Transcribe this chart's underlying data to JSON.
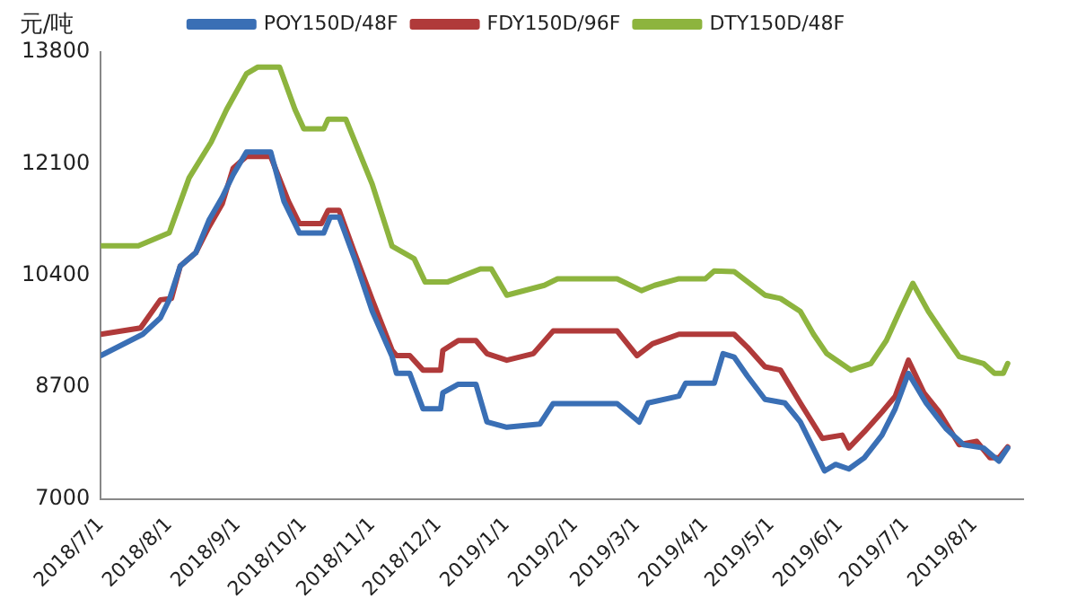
{
  "chart_data": {
    "type": "line",
    "ylabel": "元/吨",
    "xlim": [
      "2018-07-01",
      "2019-08-23"
    ],
    "xticks": [
      {
        "value": "2018-07-01",
        "label": "2018/7/1"
      },
      {
        "value": "2018-08-01",
        "label": "2018/8/1"
      },
      {
        "value": "2018-09-01",
        "label": "2018/9/1"
      },
      {
        "value": "2018-10-01",
        "label": "2018/10/1"
      },
      {
        "value": "2018-11-01",
        "label": "2018/11/1"
      },
      {
        "value": "2018-12-01",
        "label": "2018/12/1"
      },
      {
        "value": "2019-01-01",
        "label": "2019/1/1"
      },
      {
        "value": "2019-02-01",
        "label": "2019/2/1"
      },
      {
        "value": "2019-03-01",
        "label": "2019/3/1"
      },
      {
        "value": "2019-04-01",
        "label": "2019/4/1"
      },
      {
        "value": "2019-05-01",
        "label": "2019/5/1"
      },
      {
        "value": "2019-06-01",
        "label": "2019/6/1"
      },
      {
        "value": "2019-07-01",
        "label": "2019/7/1"
      },
      {
        "value": "2019-08-01",
        "label": "2019/8/1"
      }
    ],
    "ylim": [
      7000,
      13800
    ],
    "yticks": [
      7000,
      8700,
      10400,
      12100,
      13800
    ],
    "grid": false,
    "legend": "top",
    "marker": "none",
    "line_style": "solid",
    "series": [
      {
        "name": "POY150D/48F",
        "color": "#3a6fb5",
        "x": [
          "2018-07-01",
          "2018-07-20",
          "2018-07-28",
          "2018-08-01",
          "2018-08-06",
          "2018-08-13",
          "2018-08-19",
          "2018-08-25",
          "2018-08-30",
          "2018-09-05",
          "2018-09-16",
          "2018-09-22",
          "2018-09-29",
          "2018-10-10",
          "2018-10-13",
          "2018-10-17",
          "2018-10-24",
          "2018-11-01",
          "2018-11-10",
          "2018-11-12",
          "2018-11-18",
          "2018-11-24",
          "2018-12-02",
          "2018-12-03",
          "2018-12-10",
          "2018-12-18",
          "2018-12-23",
          "2019-01-01",
          "2019-01-16",
          "2019-01-22",
          "2019-02-20",
          "2019-03-02",
          "2019-03-06",
          "2019-03-20",
          "2019-03-23",
          "2019-04-05",
          "2019-04-09",
          "2019-04-14",
          "2019-04-20",
          "2019-04-28",
          "2019-05-07",
          "2019-05-14",
          "2019-05-25",
          "2019-05-30",
          "2019-06-05",
          "2019-06-12",
          "2019-06-20",
          "2019-06-26",
          "2019-07-02",
          "2019-07-10",
          "2019-07-19",
          "2019-07-27",
          "2019-08-05",
          "2019-08-12",
          "2019-08-16"
        ],
        "values": [
          9180,
          9505,
          9755,
          10030,
          10545,
          10745,
          11240,
          11590,
          11935,
          12280,
          12280,
          11530,
          11045,
          11045,
          11290,
          11290,
          10655,
          9855,
          9165,
          8910,
          8910,
          8370,
          8370,
          8615,
          8745,
          8745,
          8170,
          8090,
          8140,
          8450,
          8450,
          8170,
          8460,
          8565,
          8760,
          8760,
          9210,
          9160,
          8870,
          8515,
          8460,
          8170,
          7425,
          7525,
          7455,
          7625,
          7970,
          8370,
          8910,
          8460,
          8070,
          7825,
          7775,
          7575,
          7775
        ]
      },
      {
        "name": "FDY150D/96F",
        "color": "#b03a3a",
        "x": [
          "2018-07-01",
          "2018-07-19",
          "2018-07-28",
          "2018-08-02",
          "2018-08-06",
          "2018-08-13",
          "2018-08-19",
          "2018-08-25",
          "2018-08-30",
          "2018-09-05",
          "2018-09-16",
          "2018-09-24",
          "2018-09-29",
          "2018-10-09",
          "2018-10-12",
          "2018-10-17",
          "2018-10-24",
          "2018-11-01",
          "2018-11-10",
          "2018-11-12",
          "2018-11-18",
          "2018-11-24",
          "2018-12-02",
          "2018-12-03",
          "2018-12-10",
          "2018-12-18",
          "2018-12-23",
          "2019-01-01",
          "2019-01-13",
          "2019-01-22",
          "2019-02-20",
          "2019-03-01",
          "2019-03-08",
          "2019-03-20",
          "2019-04-14",
          "2019-04-20",
          "2019-04-28",
          "2019-05-05",
          "2019-05-14",
          "2019-05-24",
          "2019-06-02",
          "2019-06-05",
          "2019-06-12",
          "2019-06-20",
          "2019-06-26",
          "2019-07-02",
          "2019-07-09",
          "2019-07-16",
          "2019-07-25",
          "2019-08-02",
          "2019-08-08",
          "2019-08-12",
          "2019-08-16"
        ],
        "values": [
          9505,
          9600,
          10030,
          10050,
          10545,
          10745,
          11140,
          11490,
          12035,
          12210,
          12210,
          11530,
          11190,
          11190,
          11390,
          11390,
          10745,
          10030,
          9260,
          9180,
          9180,
          8960,
          8960,
          9260,
          9410,
          9410,
          9210,
          9110,
          9210,
          9555,
          9555,
          9180,
          9360,
          9505,
          9505,
          9310,
          9010,
          8960,
          8460,
          7920,
          7970,
          7775,
          8020,
          8320,
          8560,
          9110,
          8615,
          8320,
          7825,
          7875,
          7625,
          7625,
          7790
        ]
      },
      {
        "name": "DTY150D/48F",
        "color": "#8db43e",
        "x": [
          "2018-07-01",
          "2018-07-18",
          "2018-08-01",
          "2018-08-10",
          "2018-08-20",
          "2018-08-27",
          "2018-09-05",
          "2018-09-10",
          "2018-09-20",
          "2018-09-27",
          "2018-10-01",
          "2018-10-10",
          "2018-10-12",
          "2018-10-20",
          "2018-11-01",
          "2018-11-10",
          "2018-11-20",
          "2018-11-25",
          "2018-12-05",
          "2018-12-20",
          "2018-12-25",
          "2019-01-01",
          "2019-01-18",
          "2019-01-24",
          "2019-02-20",
          "2019-03-03",
          "2019-03-09",
          "2019-03-20",
          "2019-04-01",
          "2019-04-05",
          "2019-04-14",
          "2019-04-28",
          "2019-05-05",
          "2019-05-14",
          "2019-05-20",
          "2019-05-26",
          "2019-06-06",
          "2019-06-15",
          "2019-06-22",
          "2019-06-28",
          "2019-07-04",
          "2019-07-11",
          "2019-07-18",
          "2019-07-25",
          "2019-08-05",
          "2019-08-10",
          "2019-08-14",
          "2019-08-16"
        ],
        "values": [
          10850,
          10850,
          11050,
          11885,
          12430,
          12925,
          13470,
          13570,
          13570,
          12925,
          12630,
          12630,
          12780,
          12780,
          11790,
          10845,
          10655,
          10300,
          10300,
          10500,
          10500,
          10100,
          10250,
          10350,
          10350,
          10170,
          10250,
          10350,
          10350,
          10470,
          10460,
          10100,
          10050,
          9855,
          9505,
          9210,
          8960,
          9060,
          9410,
          9855,
          10280,
          9855,
          9505,
          9165,
          9060,
          8910,
          8910,
          9060
        ]
      }
    ]
  }
}
